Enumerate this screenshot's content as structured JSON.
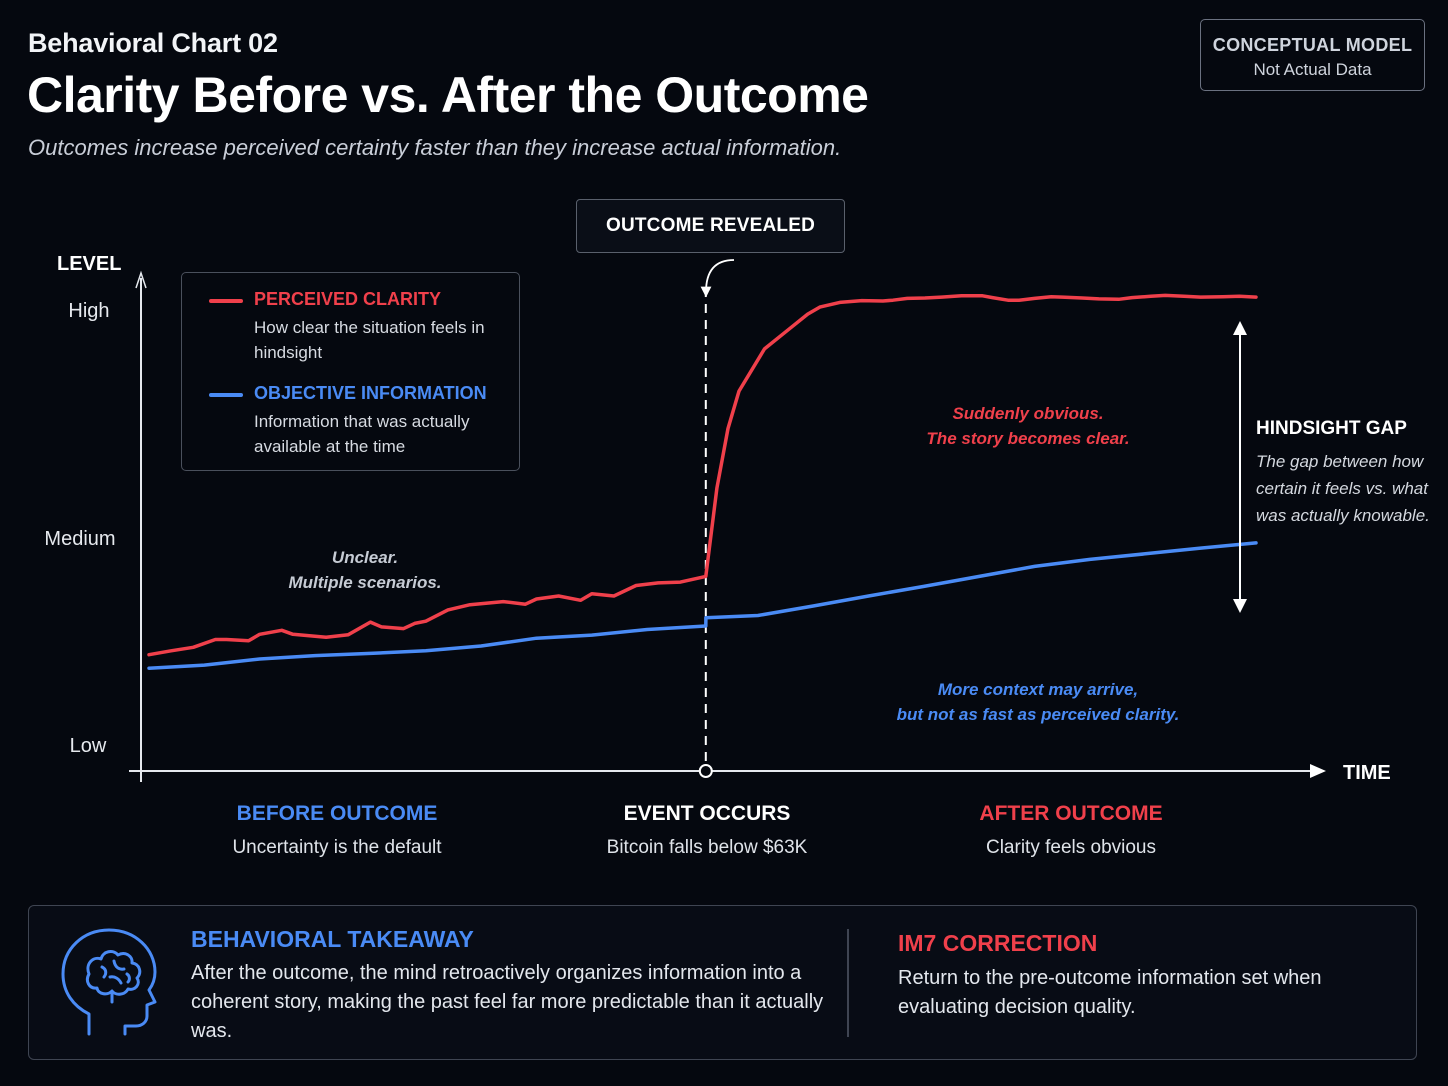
{
  "header": {
    "eyebrow": "Behavioral Chart 02",
    "title": "Clarity Before vs. After the Outcome",
    "subtitle": "Outcomes increase perceived certainty faster than they increase actual information."
  },
  "badge": {
    "line1": "CONCEPTUAL MODEL",
    "line2": "Not Actual Data"
  },
  "colors": {
    "perceived": "#f0404b",
    "objective": "#4a8bf5",
    "background": "#05080f"
  },
  "chart_data": {
    "type": "line",
    "xlabel": "TIME",
    "ylabel": "LEVEL",
    "y_ticks": [
      "High",
      "Medium",
      "Low"
    ],
    "ylim": [
      0,
      100
    ],
    "xlim": [
      0,
      100
    ],
    "event_x": 50.3,
    "series": [
      {
        "name": "PERCEIVED CLARITY",
        "description": "How clear the situation feels in hindsight",
        "color": "#f0404b",
        "x": [
          0,
          2,
          4,
          6,
          7,
          9,
          10,
          12,
          13,
          16,
          18,
          20,
          21,
          23,
          24,
          25,
          27,
          29,
          32,
          34,
          35,
          37,
          39,
          40,
          42,
          44,
          46,
          48,
          50.3,
          51.3,
          52.3,
          53.3,
          55.6,
          57.8,
          59.5,
          60.6,
          62.4,
          64.4,
          66.3,
          67.2,
          68.5,
          70.1,
          71.6,
          73.4,
          75.3,
          76.2,
          77.6,
          78.6,
          80,
          81.5,
          82.5,
          84.3,
          85.8,
          87.6,
          88.8,
          90.5,
          91.8,
          93.5,
          95,
          97,
          98.5,
          100
        ],
        "y": [
          18,
          18.9,
          19.7,
          21.5,
          21.5,
          21.2,
          22.7,
          23.6,
          22.7,
          22,
          22.6,
          25.5,
          24.4,
          24,
          25.2,
          25.7,
          28.3,
          29.5,
          30.2,
          29.6,
          30.8,
          31.5,
          30.5,
          32,
          31.5,
          33.9,
          34.5,
          34.7,
          36,
          56.3,
          70,
          78.6,
          88.3,
          92.8,
          96.3,
          97.9,
          99,
          99.4,
          99.3,
          99.5,
          99.9,
          100,
          100.2,
          100.5,
          100.5,
          100.1,
          99.5,
          99.5,
          99.9,
          100.3,
          100.2,
          100,
          99.8,
          99.7,
          100.1,
          100.4,
          100.6,
          100.4,
          100.2,
          100.3,
          100.4,
          100.2
        ]
      },
      {
        "name": "OBJECTIVE INFORMATION",
        "description": "Information that was actually available at the time",
        "color": "#4a8bf5",
        "x": [
          0,
          5,
          10,
          15,
          20,
          25,
          30,
          35,
          40,
          45,
          50.3,
          50.31,
          55,
          60,
          65,
          70,
          75,
          80,
          85,
          90,
          95,
          100
        ],
        "y": [
          14.9,
          15.6,
          17,
          17.8,
          18.3,
          18.9,
          20,
          21.8,
          22.5,
          23.8,
          24.6,
          26.5,
          27,
          29.2,
          31.5,
          33.7,
          36,
          38.3,
          39.9,
          41.2,
          42.5,
          43.7
        ]
      }
    ],
    "legend": "top-left",
    "grid": false
  },
  "annotations": {
    "outcome_box": "OUTCOME REVEALED",
    "before_line1": "Unclear.",
    "before_line2": "Multiple scenarios.",
    "after_red_line1": "Suddenly obvious.",
    "after_red_line2": "The story becomes clear.",
    "after_blue_line1": "More context may arrive,",
    "after_blue_line2": "but not as fast as perceived clarity.",
    "gap_title": "HINDSIGHT GAP",
    "gap_desc": "The gap between how certain it feels vs. what was actually knowable."
  },
  "phases": [
    {
      "title": "BEFORE OUTCOME",
      "desc": "Uncertainty is the default",
      "color": "#4a8bf5"
    },
    {
      "title": "EVENT OCCURS",
      "desc": "Bitcoin falls below $63K",
      "color": "#ffffff"
    },
    {
      "title": "AFTER OUTCOME",
      "desc": "Clarity feels obvious",
      "color": "#f0404b"
    }
  ],
  "takeaway": {
    "icon": "brain-icon",
    "title": "BEHAVIORAL TAKEAWAY",
    "body": "After the outcome, the mind retroactively organizes information into a coherent story, making the past feel far more predictable than it actually was."
  },
  "correction": {
    "title": "IM7 CORRECTION",
    "body": "Return to the pre-outcome information set when evaluating decision quality."
  }
}
